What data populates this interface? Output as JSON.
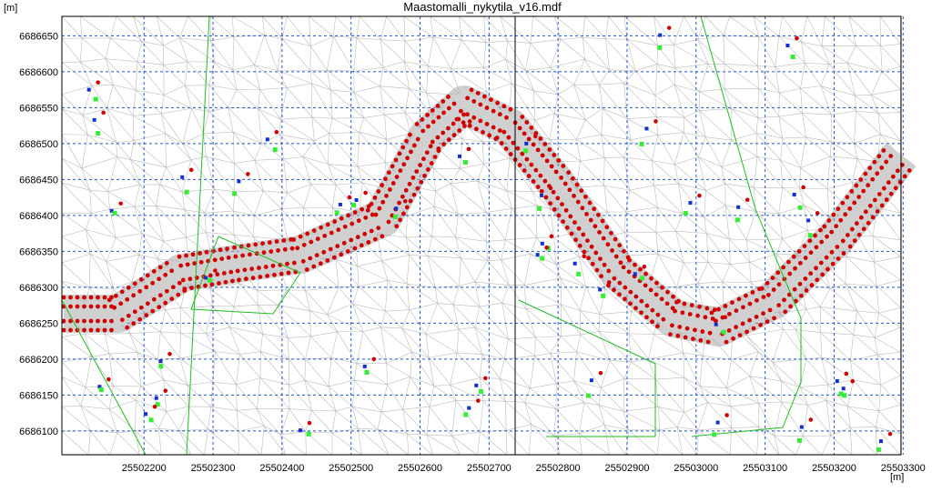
{
  "title": "Maastomalli_nykytila_v16.mdf",
  "y_unit": "[m]",
  "x_unit": "[m]",
  "xlim": [
    25502081,
    25503297
  ],
  "ylim": [
    6686067,
    6686677
  ],
  "xticks": [
    25502200,
    25502300,
    25502400,
    25502500,
    25502600,
    25502700,
    25502800,
    25502900,
    25503000,
    25503100,
    25503200,
    25503300
  ],
  "yticks": [
    6686100,
    6686150,
    6686200,
    6686250,
    6686300,
    6686350,
    6686400,
    6686450,
    6686500,
    6686550,
    6686600,
    6686650
  ]
}
